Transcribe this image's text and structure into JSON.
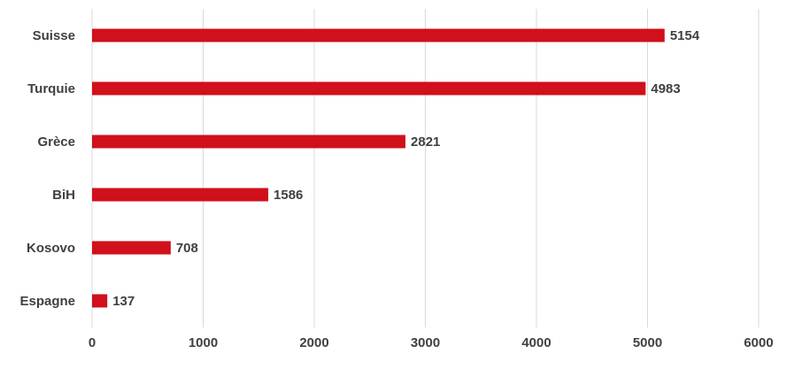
{
  "chart_data": {
    "type": "bar",
    "orientation": "horizontal",
    "categories": [
      "Suisse",
      "Turquie",
      "Grèce",
      "BiH",
      "Kosovo",
      "Espagne"
    ],
    "values": [
      5154,
      4983,
      2821,
      1586,
      708,
      137
    ],
    "xticks": [
      "0",
      "1000",
      "2000",
      "3000",
      "4000",
      "5000",
      "6000"
    ],
    "xlim": [
      0,
      6000
    ],
    "grid": "vertical",
    "legend": "none",
    "data_labels": true,
    "bar_color": "#d0101b"
  }
}
